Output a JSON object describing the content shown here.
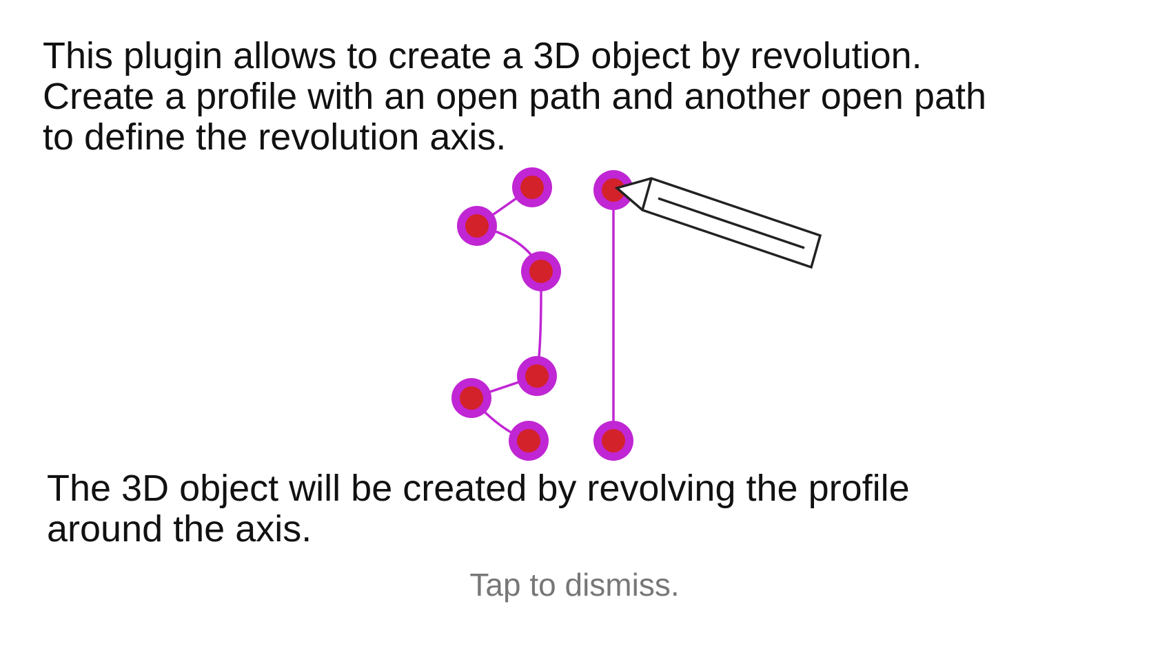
{
  "tutorial": {
    "intro": "This plugin allows to create a 3D object by revolution.\nCreate a profile with an open path and another open path\nto define the revolution axis.",
    "outro": "The 3D object will be created by revolving the profile\naround the axis.",
    "dismiss": "Tap to dismiss."
  },
  "illustration": {
    "path_color": "#c026d3",
    "node_outer_color": "#c026d3",
    "node_inner_color": "#d3222a",
    "pencil_color": "#222222",
    "profile_path_nodes": 6,
    "axis_path_nodes": 2,
    "tool_icon": "pencil-icon"
  }
}
